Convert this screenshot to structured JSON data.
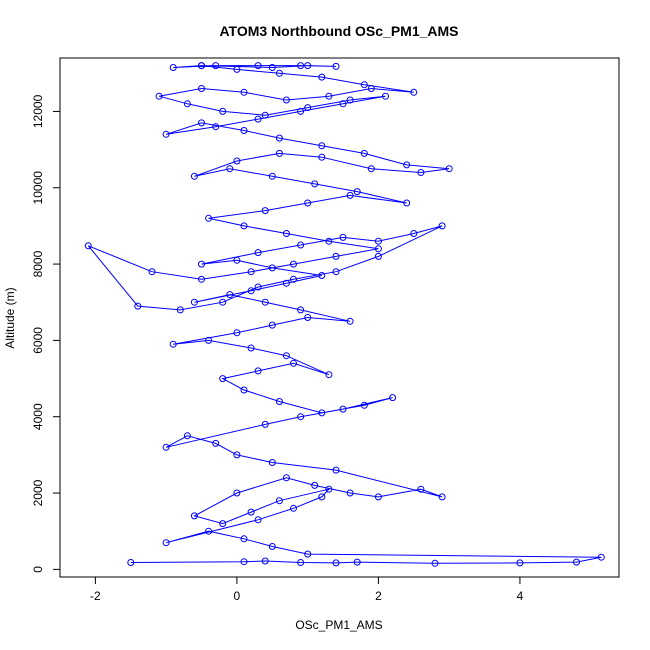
{
  "chart_data": {
    "type": "scatter",
    "title": "ATOM3 Northbound OSc_PM1_AMS",
    "xlabel": "OSc_PM1_AMS",
    "ylabel": "Altitude (m)",
    "xlim": [
      -2.5,
      5.4
    ],
    "ylim": [
      -200,
      13400
    ],
    "x_ticks": [
      -2,
      0,
      2,
      4
    ],
    "y_ticks": [
      0,
      2000,
      4000,
      6000,
      8000,
      10000,
      12000
    ],
    "x_tick_labels": [
      "-2",
      "0",
      "2",
      "4"
    ],
    "y_tick_labels": [
      "0",
      "2000",
      "4000",
      "6000",
      "8000",
      "10000",
      "12000"
    ],
    "grid": false,
    "legend": "none",
    "series": [
      {
        "color": "#0000ff",
        "marker": "open-circle",
        "connected": true,
        "x": [
          -1.5,
          0.1,
          0.4,
          0.9,
          1.4,
          1.7,
          2.8,
          4.0,
          4.8,
          5.15,
          1.0,
          0.5,
          0.1,
          -0.4,
          -1.0,
          0.3,
          0.8,
          1.2,
          1.3,
          0.6,
          0.2,
          -0.2,
          -0.6,
          0.0,
          0.7,
          1.1,
          1.6,
          2.0,
          2.6,
          2.9,
          1.4,
          0.5,
          0.0,
          -0.3,
          -0.7,
          -1.0,
          0.4,
          0.9,
          1.5,
          2.2,
          1.8,
          1.2,
          0.6,
          0.1,
          -0.2,
          0.3,
          0.8,
          1.3,
          0.7,
          0.2,
          -0.4,
          -0.9,
          0.0,
          0.5,
          1.0,
          1.6,
          0.9,
          0.4,
          -0.1,
          -0.6,
          0.2,
          0.7,
          1.2,
          0.5,
          0.0,
          -0.5,
          0.3,
          0.9,
          1.5,
          2.0,
          2.5,
          2.9,
          2.0,
          1.4,
          0.8,
          0.3,
          -0.2,
          -0.8,
          -1.4,
          -2.1,
          -1.2,
          -0.5,
          0.2,
          0.8,
          1.4,
          2.0,
          1.3,
          0.7,
          0.1,
          -0.4,
          0.4,
          1.0,
          1.6,
          2.4,
          1.7,
          1.1,
          0.5,
          -0.1,
          -0.6,
          0.0,
          0.6,
          1.2,
          1.9,
          2.6,
          3.0,
          2.4,
          1.8,
          1.2,
          0.6,
          0.1,
          -0.5,
          -1.0,
          -0.3,
          0.3,
          0.9,
          1.5,
          2.1,
          1.6,
          1.0,
          0.4,
          -0.2,
          -0.7,
          -1.1,
          -0.5,
          0.1,
          0.7,
          1.3,
          1.9,
          2.5,
          1.8,
          1.2,
          0.6,
          0.0,
          -0.5,
          -0.9,
          -0.3,
          0.3,
          0.9,
          1.4,
          1.0,
          0.5,
          -0.5
        ],
        "y": [
          180,
          200,
          220,
          180,
          170,
          190,
          160,
          170,
          190,
          320,
          400,
          600,
          800,
          1000,
          700,
          1300,
          1600,
          1900,
          2100,
          1800,
          1500,
          1200,
          1400,
          2000,
          2400,
          2200,
          2000,
          1900,
          2100,
          1900,
          2600,
          2800,
          3000,
          3300,
          3500,
          3200,
          3800,
          4000,
          4200,
          4500,
          4300,
          4100,
          4400,
          4700,
          5000,
          5200,
          5400,
          5100,
          5600,
          5800,
          6000,
          5900,
          6200,
          6400,
          6600,
          6500,
          6800,
          7000,
          7200,
          7000,
          7300,
          7500,
          7700,
          7900,
          8100,
          8000,
          8300,
          8500,
          8700,
          8600,
          8800,
          9000,
          8200,
          7800,
          7600,
          7400,
          7000,
          6800,
          6900,
          8480,
          7800,
          7600,
          7800,
          8000,
          8200,
          8400,
          8600,
          8800,
          9000,
          9200,
          9400,
          9600,
          9800,
          9600,
          9900,
          10100,
          10300,
          10500,
          10300,
          10700,
          10900,
          10800,
          10500,
          10400,
          10500,
          10600,
          10900,
          11100,
          11300,
          11500,
          11700,
          11400,
          11600,
          11800,
          12000,
          12200,
          12400,
          12300,
          12100,
          11900,
          12000,
          12200,
          12400,
          12600,
          12500,
          12300,
          12400,
          12600,
          12500,
          12700,
          12900,
          13000,
          13100,
          13200,
          13150,
          13200,
          13200,
          13200,
          13180,
          13200,
          13150,
          13200
        ]
      }
    ]
  }
}
